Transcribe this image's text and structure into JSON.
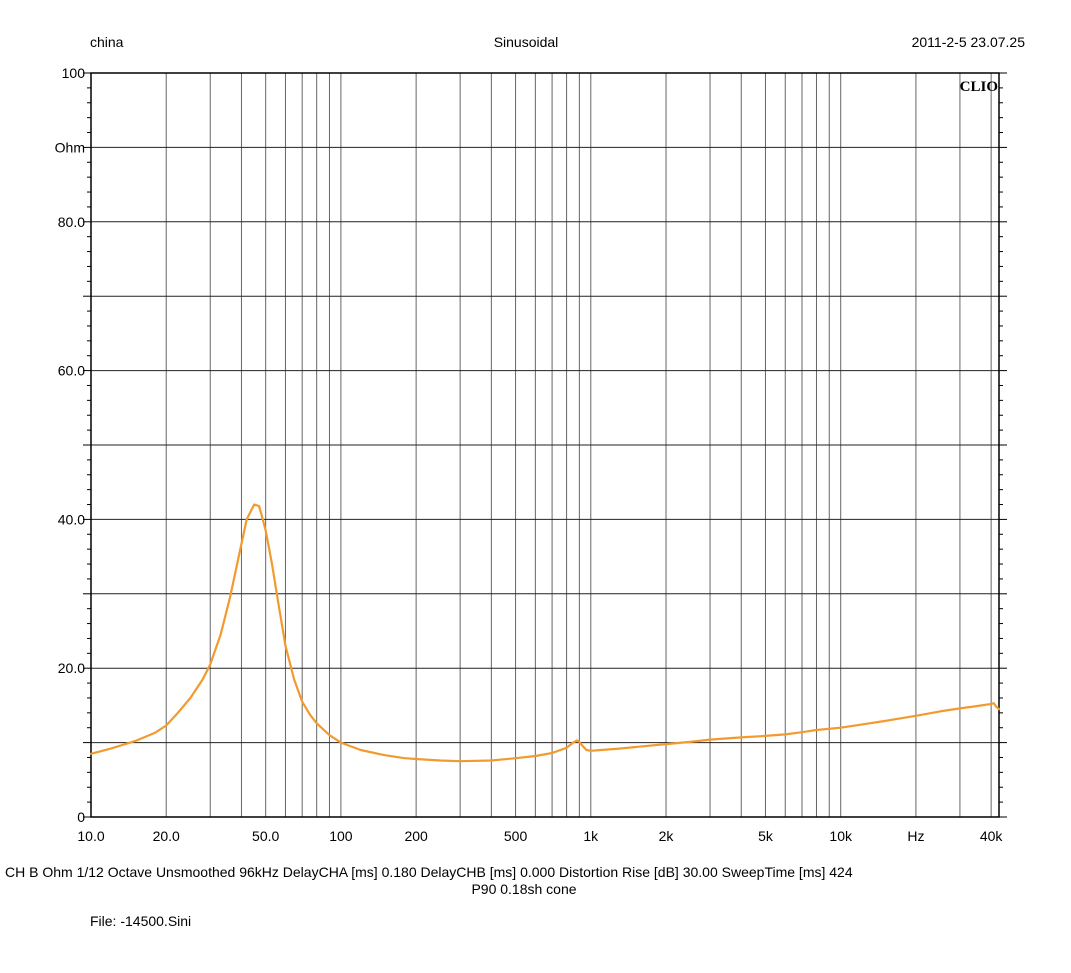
{
  "header": {
    "left": "china",
    "center": "Sinusoidal",
    "right": "2011-2-5 23.07.25"
  },
  "footer": {
    "info_line": "CH B   Ohm    1/12 Octave   Unsmoothed   96kHz   DelayCHA [ms] 0.180    DelayCHB [ms] 0.000    Distortion Rise [dB] 30.00    SweepTime [ms] 424",
    "note": "P90 0.18sh cone",
    "file": "File: -14500.Sini"
  },
  "chart_data": {
    "type": "line",
    "title": "Sinusoidal",
    "brand": "CLIO",
    "xscale": "log",
    "xlim": [
      10,
      43000
    ],
    "ylim": [
      0,
      100
    ],
    "ylabel": "Ohm",
    "xlabel": "Hz",
    "grid": true,
    "y_tick_labels": [
      {
        "value": 100,
        "label": "100"
      },
      {
        "value": 90,
        "label": "Ohm"
      },
      {
        "value": 80,
        "label": "80.0"
      },
      {
        "value": 60,
        "label": "60.0"
      },
      {
        "value": 40,
        "label": "40.0"
      },
      {
        "value": 20,
        "label": "20.0"
      },
      {
        "value": 0,
        "label": "0"
      }
    ],
    "x_tick_labels": [
      {
        "value": 10,
        "label": "10.0"
      },
      {
        "value": 20,
        "label": "20.0"
      },
      {
        "value": 50,
        "label": "50.0"
      },
      {
        "value": 100,
        "label": "100"
      },
      {
        "value": 200,
        "label": "200"
      },
      {
        "value": 500,
        "label": "500"
      },
      {
        "value": 1000,
        "label": "1k"
      },
      {
        "value": 2000,
        "label": "2k"
      },
      {
        "value": 5000,
        "label": "5k"
      },
      {
        "value": 10000,
        "label": "10k"
      },
      {
        "value": 20000,
        "label": "Hz"
      },
      {
        "value": 40000,
        "label": "40k"
      }
    ],
    "series": [
      {
        "color": "#f39a2e",
        "x": [
          10,
          12,
          15,
          18,
          20,
          22,
          25,
          28,
          30,
          33,
          36,
          39,
          42,
          45,
          47,
          48,
          50,
          53,
          56,
          60,
          65,
          70,
          75,
          80,
          90,
          100,
          120,
          150,
          180,
          200,
          250,
          300,
          400,
          500,
          600,
          700,
          800,
          850,
          880,
          900,
          930,
          960,
          1000,
          1100,
          1300,
          1500,
          2000,
          2500,
          3000,
          4000,
          5000,
          6000,
          7000,
          8000,
          10000,
          12000,
          15000,
          20000,
          25000,
          30000,
          35000,
          40000,
          41000,
          42000,
          43000
        ],
        "y": [
          8.5,
          9.2,
          10.2,
          11.3,
          12.3,
          13.8,
          16.0,
          18.5,
          20.5,
          24.5,
          29.5,
          35.0,
          40.0,
          42.0,
          41.8,
          40.8,
          38.5,
          34.0,
          29.0,
          23.0,
          18.5,
          15.5,
          13.8,
          12.6,
          11.0,
          10.0,
          9.0,
          8.3,
          7.9,
          7.8,
          7.6,
          7.5,
          7.6,
          7.9,
          8.2,
          8.6,
          9.3,
          10.0,
          10.3,
          10.1,
          9.5,
          9.0,
          8.9,
          9.0,
          9.2,
          9.4,
          9.8,
          10.1,
          10.4,
          10.7,
          10.9,
          11.1,
          11.4,
          11.7,
          12.0,
          12.4,
          12.9,
          13.6,
          14.2,
          14.6,
          14.9,
          15.2,
          15.3,
          14.8,
          14.5
        ]
      }
    ]
  }
}
